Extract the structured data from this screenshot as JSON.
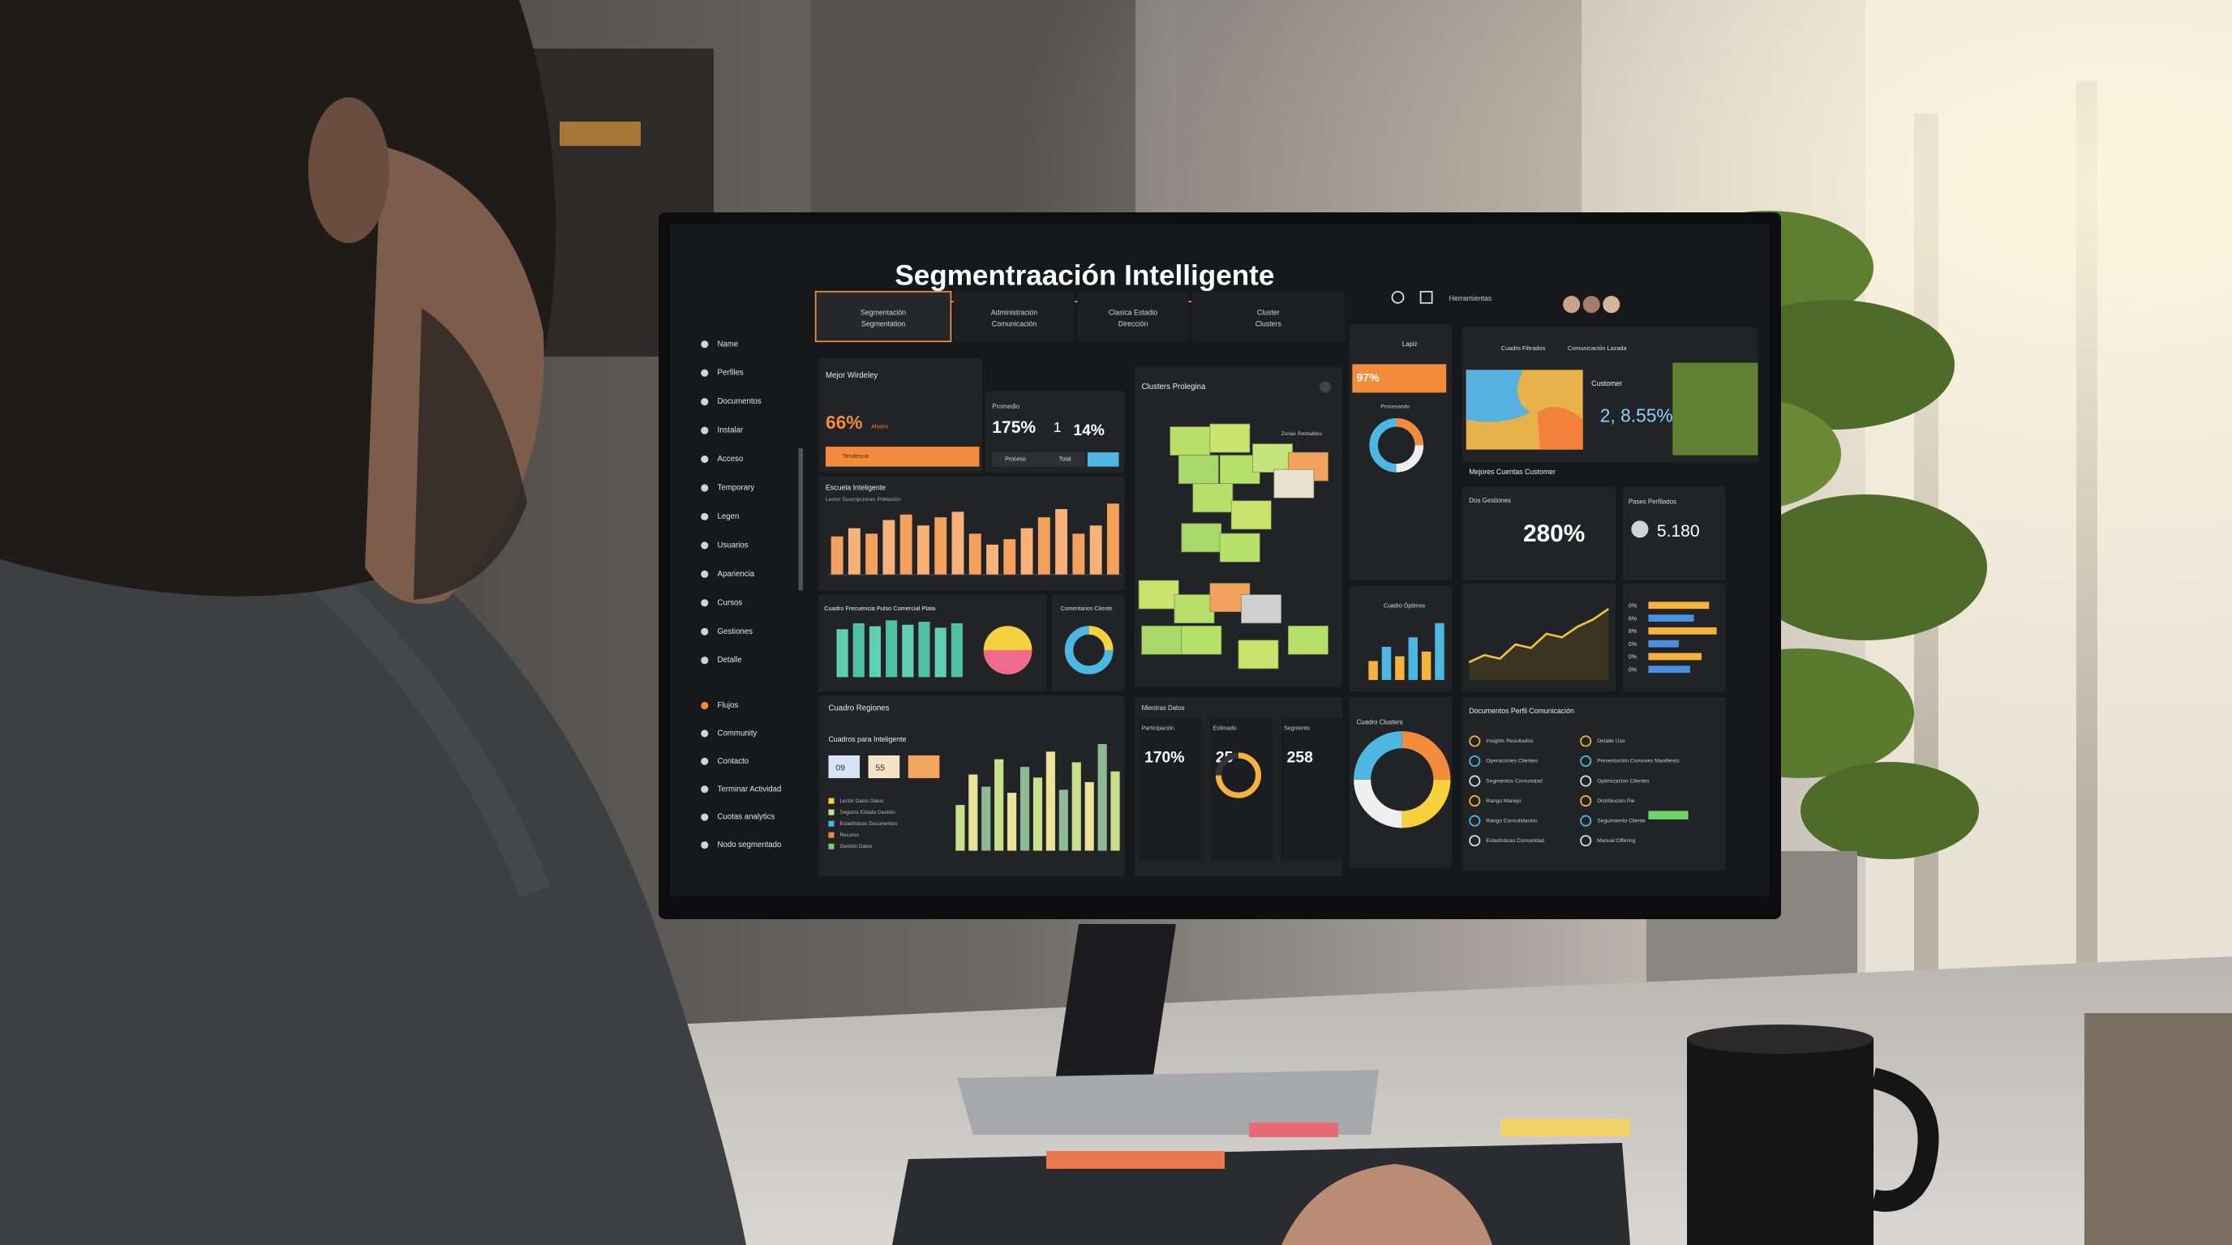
{
  "title": "Segmentraación Intelligente",
  "header": {
    "user": "Herramientas"
  },
  "tabs": [
    [
      "Segmentación",
      "Segmentation"
    ],
    [
      "Administración",
      "Comunicación"
    ],
    [
      "Clasica Estadio",
      "Dirección"
    ],
    [
      "Cluster",
      "Clusters"
    ]
  ],
  "sidebar": [
    "Name",
    "Perfiles",
    "Documentos",
    "Instalar",
    "Acceso",
    "Temporary",
    "Legen",
    "Usuarios",
    "Apariencia",
    "Cursos",
    "Gestiones",
    "Detalle",
    "Flujos",
    "Community",
    "Contacto",
    "Terminar Actividad",
    "Cuotas analytics",
    "Nodo segmentado"
  ],
  "cards": {
    "mejor": {
      "title": "Mejor Wirdeley",
      "value": "66%",
      "sub": "Ahorro",
      "bar": "Tendencia"
    },
    "promo": {
      "label": "Promedio",
      "a": "175%",
      "b": "1",
      "c": "14%",
      "foot": [
        "Proceso",
        "Total"
      ]
    },
    "escuela": {
      "title": "Escuela Inteligente",
      "subtitle": "Lector Suscripciones Población",
      "values": [
        28,
        34,
        30,
        40,
        44,
        36,
        42,
        46,
        30,
        22,
        26,
        34,
        42,
        48,
        30,
        36,
        52
      ]
    },
    "frecuencia": {
      "title": "Cuadro Frecuencia Pulso Comercial Plata",
      "values": [
        32,
        36,
        34,
        38,
        35,
        37,
        33,
        36
      ]
    },
    "comentarios": {
      "title": "Comentarios Cliente"
    },
    "regiones": {
      "title": "Cuadro Regiones",
      "subtitle": "Cuadros para Inteligente",
      "chips": [
        "09",
        "55"
      ],
      "legend": [
        "Lector Datos Datos",
        "Seguros Estado Gestión",
        "Estadísticas Documentos",
        "Recurso",
        "Gestión Datos"
      ],
      "values": [
        30,
        50,
        42,
        60,
        38,
        55,
        48,
        65,
        40,
        58,
        45,
        70,
        52
      ]
    },
    "prolegina": {
      "title": "Clusters Prolegina",
      "note": "Zonas Rentables"
    },
    "kpis": {
      "title": "Mientras Datos",
      "items": [
        {
          "label": "Participación",
          "value": "170%"
        },
        {
          "label": "Estimado",
          "value": "25"
        },
        {
          "label": "Segmento",
          "value": "258"
        }
      ]
    },
    "app": {
      "tab": "Lapiz",
      "value": "97%",
      "label": "Procesando"
    },
    "optimos": {
      "title": "Cuadro Óptimos",
      "values": [
        20,
        35,
        25,
        45,
        30,
        60
      ]
    },
    "cuadro_clusters": {
      "title": "Cuadro Clusters"
    },
    "map": {
      "tabs": [
        "Cuadro Filtrados",
        "Comunicación Lazada"
      ],
      "label": "Customer",
      "value": "2, 8.55%",
      "caption": "Mejores Cuentas Customer"
    },
    "dos": {
      "title": "Dos Gestiones",
      "value": "280%"
    },
    "pases": {
      "title": "Pases Perfilados",
      "value": "5.180"
    },
    "trend": {
      "values": [
        10,
        14,
        12,
        20,
        18,
        26,
        24,
        30,
        34,
        40
      ]
    },
    "hbars": {
      "labels": [
        "0%",
        "6%",
        "8%",
        "0%",
        "0%",
        "0%"
      ],
      "values": [
        80,
        60,
        90,
        40,
        70,
        55
      ]
    },
    "segments": {
      "title": "Documentos Perfil Comunicación",
      "items": [
        "Insights Resultados",
        "Operaciones Clientes",
        "Segmentos Comunidad",
        "Rango Manejo",
        "Rango Consolidación",
        "Estadísticas Comunidad",
        "Detalle Uso",
        "Presentación Comunes Manifiesto",
        "Optimización Clientes",
        "Distribución Pie",
        "Seguimiento Cliente",
        "Manual Offering"
      ]
    }
  }
}
